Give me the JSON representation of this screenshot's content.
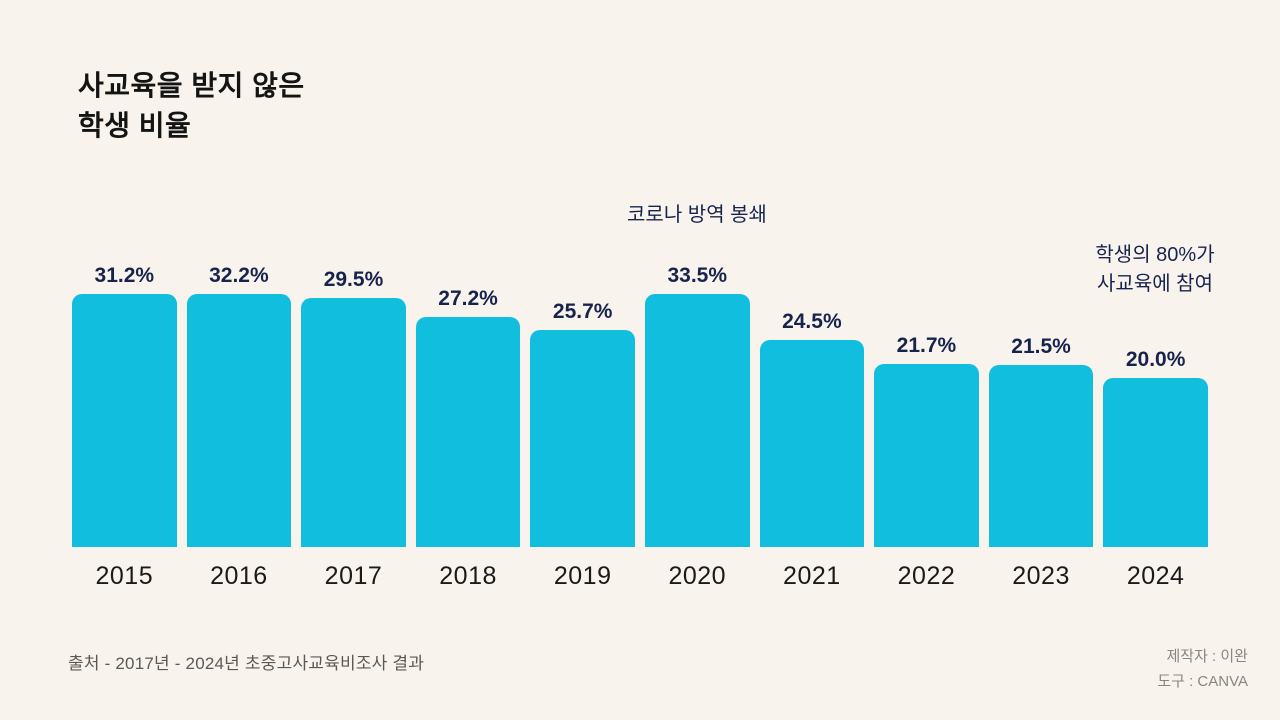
{
  "title": {
    "line1": "사교육을 받지 않은",
    "line2": "학생 비율"
  },
  "chart_data": {
    "type": "bar",
    "title": "사교육을 받지 않은 학생 비율",
    "categories": [
      "2015",
      "2016",
      "2017",
      "2018",
      "2019",
      "2020",
      "2021",
      "2022",
      "2023",
      "2024"
    ],
    "values": [
      31.2,
      32.2,
      29.5,
      27.2,
      25.7,
      33.5,
      24.5,
      21.7,
      21.5,
      20.0
    ],
    "value_labels": [
      "31.2%",
      "32.2%",
      "29.5%",
      "27.2%",
      "25.7%",
      "33.5%",
      "24.5%",
      "21.7%",
      "21.5%",
      "20.0%"
    ],
    "xlabel": "",
    "ylabel": "",
    "ylim": [
      0,
      33.5
    ],
    "grid": false,
    "legend": "none",
    "annotations": [
      {
        "text": "코로나 방역 봉쇄",
        "target_category": "2020"
      },
      {
        "text": "학생의 80%가 사교육에 참여",
        "position": "right-of-chart"
      }
    ]
  },
  "annotations": {
    "covid": "코로나 방역 봉쇄",
    "participation_line1": "학생의 80%가",
    "participation_line2": "사교육에 참여"
  },
  "footer": {
    "source": "출처 - 2017년 - 2024년 초중고사교육비조사 결과",
    "credit_author": "제작자 : 이완",
    "credit_tool": "도구 : CANVA"
  },
  "colors": {
    "background": "#f8f4ed",
    "bar": "#11bedd",
    "value_label": "#17234d",
    "title_text": "#141414",
    "footer_text": "#5d594f",
    "credit_text": "#8b867c"
  }
}
